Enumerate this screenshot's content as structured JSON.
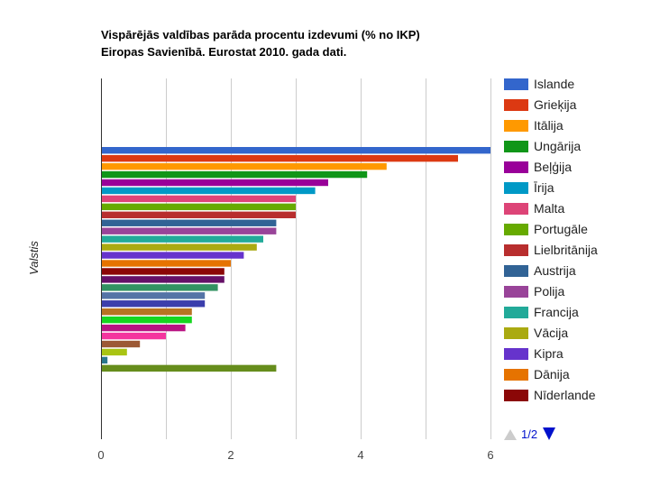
{
  "chart_data": {
    "type": "bar",
    "orientation": "horizontal",
    "title_lines": [
      "Vispārējās valdības parāda procentu izdevumi (% no IKP)",
      "Eiropas Savienībā. Eurostat 2010. gada dati."
    ],
    "ylabel": "Valstis",
    "xlabel": "",
    "xlim": [
      0,
      6
    ],
    "xticks": [
      "0",
      "2",
      "4",
      "6"
    ],
    "grid": true,
    "legend_position": "right",
    "series": [
      {
        "name": "Islande",
        "value": 6.0,
        "color": "#3366cc"
      },
      {
        "name": "Grieķija",
        "value": 5.5,
        "color": "#dc3912"
      },
      {
        "name": "Itālija",
        "value": 4.4,
        "color": "#ff9900"
      },
      {
        "name": "Ungārija",
        "value": 4.1,
        "color": "#109618"
      },
      {
        "name": "Beļģija",
        "value": 3.5,
        "color": "#990099"
      },
      {
        "name": "Īrija",
        "value": 3.3,
        "color": "#0099c6"
      },
      {
        "name": "Malta",
        "value": 3.0,
        "color": "#dd4477"
      },
      {
        "name": "Portugāle",
        "value": 3.0,
        "color": "#66aa00"
      },
      {
        "name": "Lielbritānija",
        "value": 3.0,
        "color": "#b82e2e"
      },
      {
        "name": "Austrija",
        "value": 2.7,
        "color": "#316395"
      },
      {
        "name": "Polija",
        "value": 2.7,
        "color": "#994499"
      },
      {
        "name": "Francija",
        "value": 2.5,
        "color": "#22aa99"
      },
      {
        "name": "Vācija",
        "value": 2.4,
        "color": "#aaaa11"
      },
      {
        "name": "Kipra",
        "value": 2.2,
        "color": "#6633cc"
      },
      {
        "name": "Dānija",
        "value": 2.0,
        "color": "#e67300"
      },
      {
        "name": "Nīderlande",
        "value": 1.9,
        "color": "#8b0707"
      },
      {
        "value": 1.9,
        "color": "#651067"
      },
      {
        "value": 1.8,
        "color": "#329262"
      },
      {
        "value": 1.6,
        "color": "#5574a6"
      },
      {
        "value": 1.6,
        "color": "#3b3eac"
      },
      {
        "value": 1.4,
        "color": "#b77322"
      },
      {
        "value": 1.4,
        "color": "#16d620"
      },
      {
        "value": 1.3,
        "color": "#b91383"
      },
      {
        "value": 1.0,
        "color": "#f4359e"
      },
      {
        "value": 0.6,
        "color": "#9c5935"
      },
      {
        "value": 0.4,
        "color": "#a9c413"
      },
      {
        "value": 0.1,
        "color": "#2a778d"
      },
      {
        "value": 2.7,
        "color": "#668d1c"
      }
    ]
  },
  "legend_pager": {
    "label": "1/2",
    "up_color": "#cccccc",
    "down_color": "#0011cc"
  }
}
